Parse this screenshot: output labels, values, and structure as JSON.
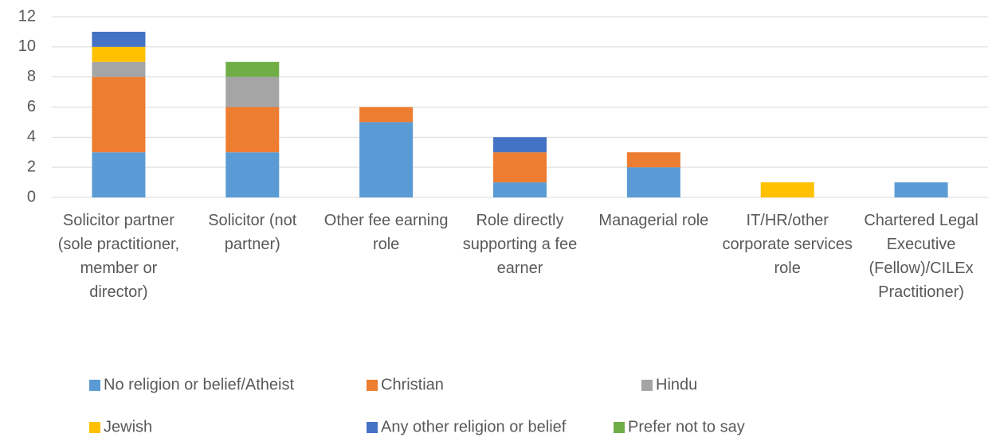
{
  "chart_data": {
    "type": "stacked_bar",
    "categories": [
      "Solicitor partner (sole practitioner, member or director)",
      "Solicitor (not partner)",
      "Other fee earning role",
      "Role directly supporting a fee earner",
      "Managerial role",
      "IT/HR/other corporate services role",
      "Chartered Legal Executive (Fellow)/CILEx Practitioner)"
    ],
    "series": [
      {
        "name": "No religion or belief/Atheist",
        "color": "#5b9bd5",
        "values": [
          3,
          3,
          5,
          1,
          2,
          0,
          1
        ]
      },
      {
        "name": "Christian",
        "color": "#ed7d31",
        "values": [
          5,
          3,
          1,
          2,
          1,
          0,
          0
        ]
      },
      {
        "name": "Hindu",
        "color": "#a5a5a5",
        "values": [
          1,
          2,
          0,
          0,
          0,
          0,
          0
        ]
      },
      {
        "name": "Jewish",
        "color": "#ffc000",
        "values": [
          1,
          0,
          0,
          0,
          0,
          1,
          0
        ]
      },
      {
        "name": "Any other religion or belief",
        "color": "#4472c4",
        "values": [
          1,
          0,
          0,
          1,
          0,
          0,
          0
        ]
      },
      {
        "name": "Prefer not to say",
        "color": "#70ad47",
        "values": [
          0,
          1,
          0,
          0,
          0,
          0,
          0
        ]
      }
    ],
    "ylim": [
      0,
      12
    ],
    "yticks": [
      0,
      2,
      4,
      6,
      8,
      10,
      12
    ],
    "grid": true,
    "legend": "bottom"
  }
}
